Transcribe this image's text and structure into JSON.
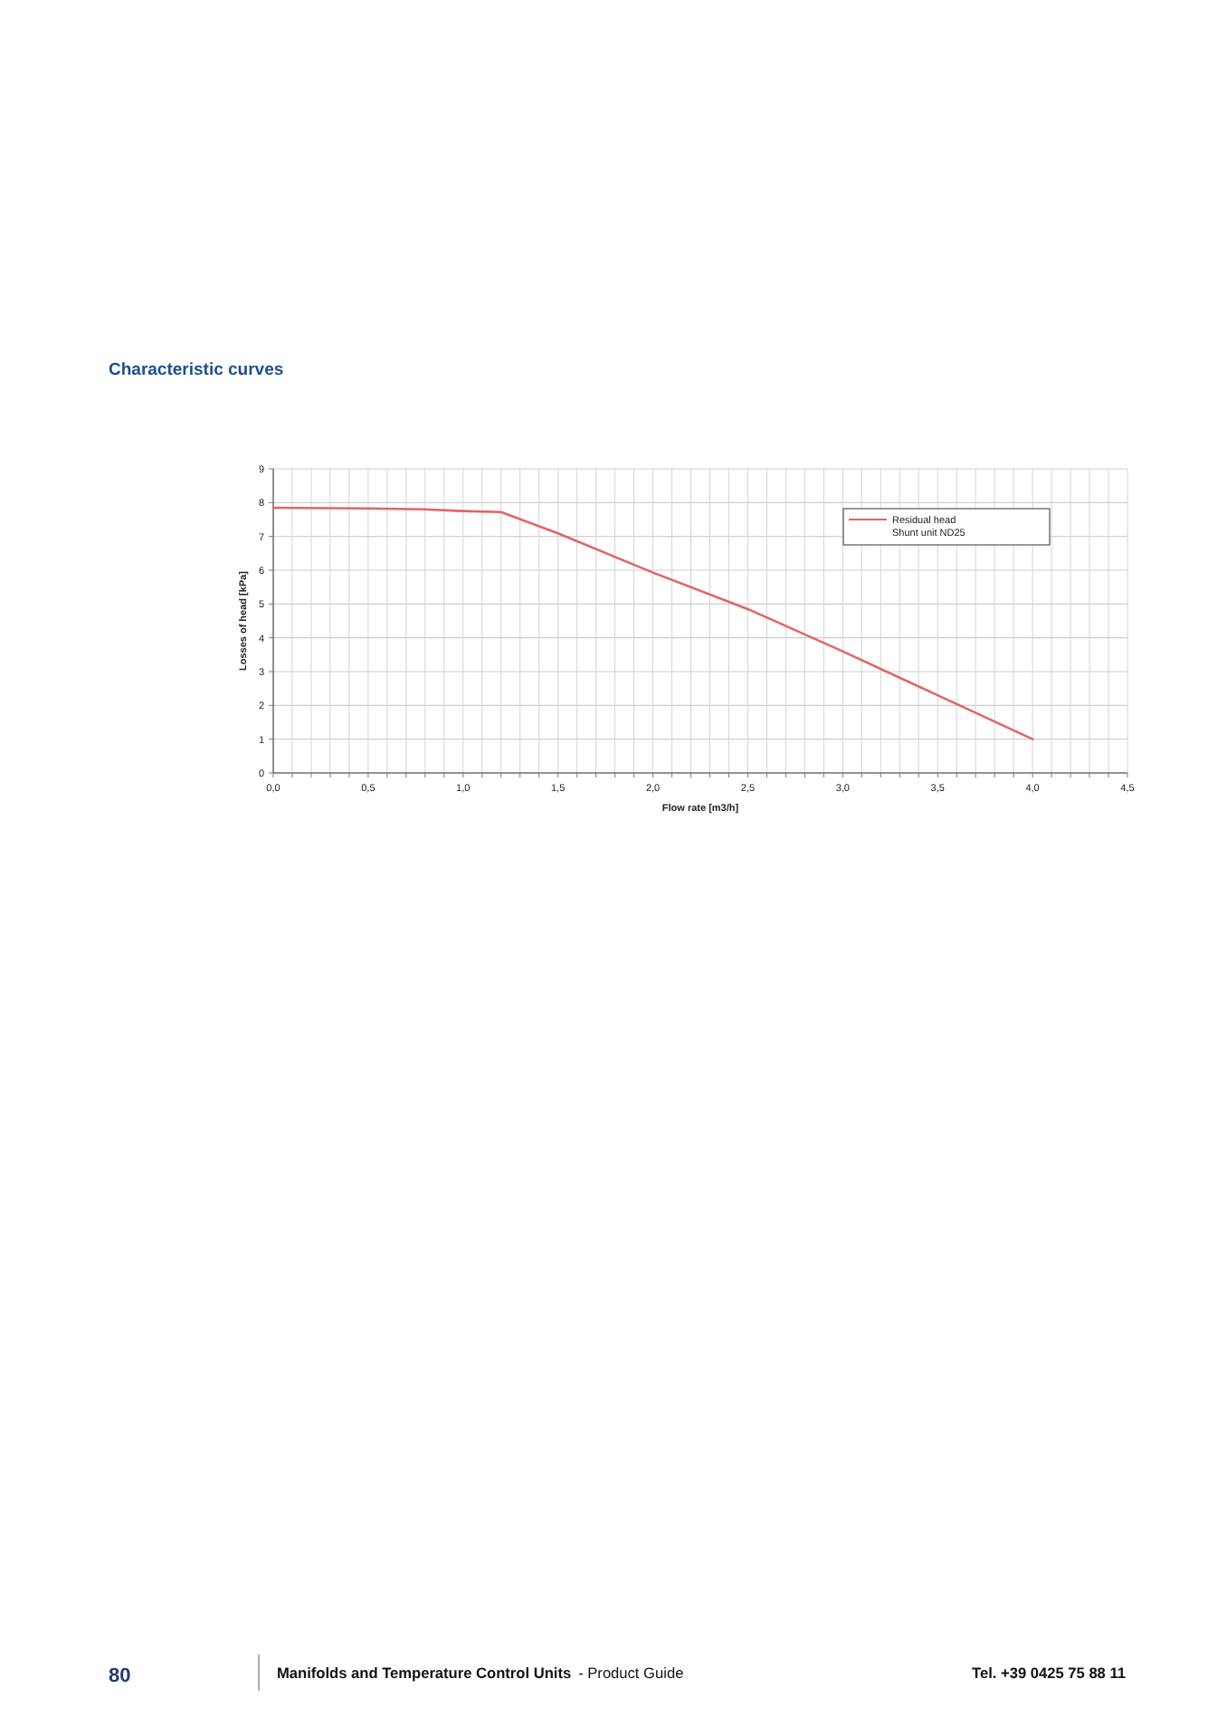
{
  "chart_data": {
    "type": "line",
    "title": "Characteristic curves",
    "xlabel": "Flow rate [m3/h]",
    "ylabel": "Losses of head [kPa]",
    "annotations": [
      "80",
      "Manifolds and Temperature Control Units",
      "- Product  Guide",
      "Tel. +39 0425 75 88 11"
    ],
    "series": [
      {
        "name": "Residual head\nShunt unit ND25",
        "color": "#e06666",
        "x": [
          0,
          0.5,
          0.8,
          1.0,
          1.2,
          1.5,
          2.0,
          2.5,
          3.0,
          3.5,
          4.0
        ],
        "values": [
          7.85,
          7.83,
          7.8,
          7.75,
          7.72,
          7.09,
          5.93,
          4.85,
          3.6,
          2.3,
          1.0
        ]
      }
    ],
    "xlim": [
      0,
      4.5
    ],
    "ylim": [
      0,
      9
    ],
    "xticks": [
      {
        "value": 0,
        "label": "0,0"
      },
      {
        "value": 0.1,
        "label": null
      },
      {
        "value": 0.2,
        "label": null
      },
      {
        "value": 0.3,
        "label": null
      },
      {
        "value": 0.4,
        "label": null
      },
      {
        "value": 0.5,
        "label": "0,5"
      },
      {
        "value": 0.6,
        "label": null
      },
      {
        "value": 0.7,
        "label": null
      },
      {
        "value": 0.8,
        "label": null
      },
      {
        "value": 0.9,
        "label": null
      },
      {
        "value": 1.0,
        "label": "1,0"
      },
      {
        "value": 1.1,
        "label": null
      },
      {
        "value": 1.2,
        "label": null
      },
      {
        "value": 1.3,
        "label": null
      },
      {
        "value": 1.4,
        "label": null
      },
      {
        "value": 1.5,
        "label": "1,5"
      },
      {
        "value": 1.6,
        "label": null
      },
      {
        "value": 1.7,
        "label": null
      },
      {
        "value": 1.8,
        "label": null
      },
      {
        "value": 1.9,
        "label": null
      },
      {
        "value": 2.0,
        "label": "2,0"
      },
      {
        "value": 2.1,
        "label": null
      },
      {
        "value": 2.2,
        "label": null
      },
      {
        "value": 2.3,
        "label": null
      },
      {
        "value": 2.4,
        "label": null
      },
      {
        "value": 2.5,
        "label": "2,5"
      },
      {
        "value": 2.6,
        "label": null
      },
      {
        "value": 2.7,
        "label": null
      },
      {
        "value": 2.8,
        "label": null
      },
      {
        "value": 2.9,
        "label": null
      },
      {
        "value": 3.0,
        "label": "3,0"
      },
      {
        "value": 3.1,
        "label": null
      },
      {
        "value": 3.2,
        "label": null
      },
      {
        "value": 3.3,
        "label": null
      },
      {
        "value": 3.4,
        "label": null
      },
      {
        "value": 3.5,
        "label": "3,5"
      },
      {
        "value": 3.6,
        "label": null
      },
      {
        "value": 3.7,
        "label": null
      },
      {
        "value": 3.8,
        "label": null
      },
      {
        "value": 3.9,
        "label": null
      },
      {
        "value": 4.0,
        "label": "4,0"
      },
      {
        "value": 4.1,
        "label": null
      },
      {
        "value": 4.2,
        "label": null
      },
      {
        "value": 4.3,
        "label": null
      },
      {
        "value": 4.4,
        "label": null
      },
      {
        "value": 4.5,
        "label": "4,5"
      }
    ],
    "yticks": [
      0,
      1,
      2,
      3,
      4,
      5,
      6,
      7,
      8,
      9
    ],
    "grid": true,
    "legend": "top right"
  }
}
